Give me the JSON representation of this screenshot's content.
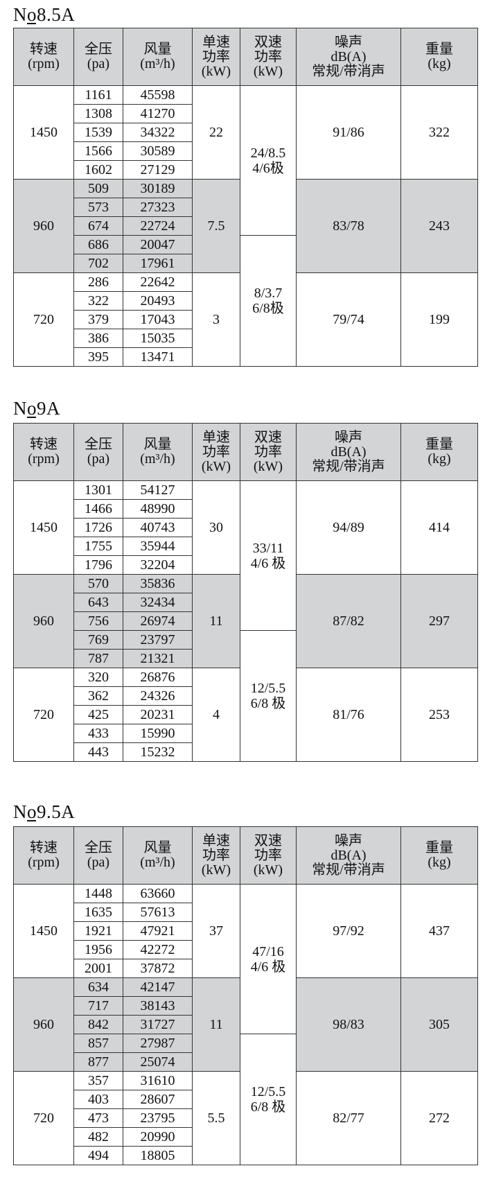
{
  "headers": [
    "转速\n(rpm)",
    "全压\n(pa)",
    "风量\n(m³/h)",
    "单速\n功率\n(kW)",
    "双速\n功率\n(kW)",
    "噪声\ndB(A)\n常规/带消声",
    "重量\n(kg)"
  ],
  "colors": {
    "shade": "#d3d4d6",
    "border": "#333333"
  },
  "tables": [
    {
      "title": "No8.5A",
      "groups": [
        {
          "rpm": "1450",
          "power": "22",
          "noise": "91/86",
          "weight": "322",
          "rows": [
            [
              "1161",
              "45598"
            ],
            [
              "1308",
              "41270"
            ],
            [
              "1539",
              "34322"
            ],
            [
              "1566",
              "30589"
            ],
            [
              "1602",
              "27129"
            ]
          ]
        },
        {
          "rpm": "960",
          "power": "7.5",
          "noise": "83/78",
          "weight": "243",
          "rows": [
            [
              "509",
              "30189"
            ],
            [
              "573",
              "27323"
            ],
            [
              "674",
              "22724"
            ],
            [
              "686",
              "20047"
            ],
            [
              "702",
              "17961"
            ]
          ]
        },
        {
          "rpm": "720",
          "power": "3",
          "noise": "79/74",
          "weight": "199",
          "rows": [
            [
              "286",
              "22642"
            ],
            [
              "322",
              "20493"
            ],
            [
              "379",
              "17043"
            ],
            [
              "386",
              "15035"
            ],
            [
              "395",
              "13471"
            ]
          ]
        }
      ],
      "dual": [
        "24/8.5\n4/6极",
        "8/3.7\n6/8极"
      ]
    },
    {
      "title": "No9A",
      "groups": [
        {
          "rpm": "1450",
          "power": "30",
          "noise": "94/89",
          "weight": "414",
          "rows": [
            [
              "1301",
              "54127"
            ],
            [
              "1466",
              "48990"
            ],
            [
              "1726",
              "40743"
            ],
            [
              "1755",
              "35944"
            ],
            [
              "1796",
              "32204"
            ]
          ]
        },
        {
          "rpm": "960",
          "power": "11",
          "noise": "87/82",
          "weight": "297",
          "rows": [
            [
              "570",
              "35836"
            ],
            [
              "643",
              "32434"
            ],
            [
              "756",
              "26974"
            ],
            [
              "769",
              "23797"
            ],
            [
              "787",
              "21321"
            ]
          ]
        },
        {
          "rpm": "720",
          "power": "4",
          "noise": "81/76",
          "weight": "253",
          "rows": [
            [
              "320",
              "26876"
            ],
            [
              "362",
              "24326"
            ],
            [
              "425",
              "20231"
            ],
            [
              "433",
              "15990"
            ],
            [
              "443",
              "15232"
            ]
          ]
        }
      ],
      "dual": [
        "33/11\n4/6 极",
        "12/5.5\n6/8 极"
      ]
    },
    {
      "title": "No9.5A",
      "groups": [
        {
          "rpm": "1450",
          "power": "37",
          "noise": "97/92",
          "weight": "437",
          "rows": [
            [
              "1448",
              "63660"
            ],
            [
              "1635",
              "57613"
            ],
            [
              "1921",
              "47921"
            ],
            [
              "1956",
              "42272"
            ],
            [
              "2001",
              "37872"
            ]
          ]
        },
        {
          "rpm": "960",
          "power": "11",
          "noise": "98/83",
          "weight": "305",
          "rows": [
            [
              "634",
              "42147"
            ],
            [
              "717",
              "38143"
            ],
            [
              "842",
              "31727"
            ],
            [
              "857",
              "27987"
            ],
            [
              "877",
              "25074"
            ]
          ]
        },
        {
          "rpm": "720",
          "power": "5.5",
          "noise": "82/77",
          "weight": "272",
          "rows": [
            [
              "357",
              "31610"
            ],
            [
              "403",
              "28607"
            ],
            [
              "473",
              "23795"
            ],
            [
              "482",
              "20990"
            ],
            [
              "494",
              "18805"
            ]
          ]
        }
      ],
      "dual": [
        "47/16\n4/6 极",
        "12/5.5\n6/8 极"
      ]
    }
  ]
}
